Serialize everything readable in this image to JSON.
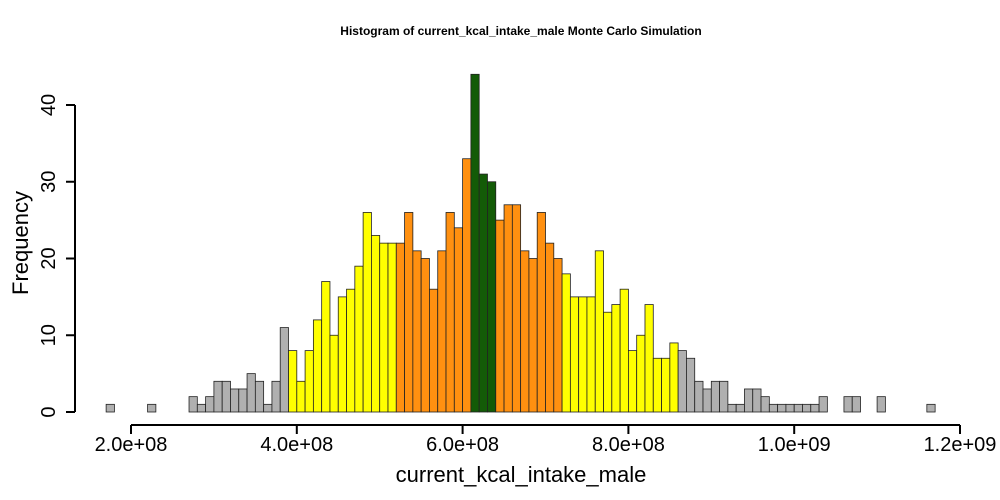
{
  "chart_data": {
    "type": "bar",
    "title": "Histogram of  current_kcal_intake_male  Monte Carlo Simulation",
    "xlabel": "current_kcal_intake_male",
    "ylabel": "Frequency",
    "xlim": [
      120000000,
      1200000000
    ],
    "ylim": [
      0,
      44
    ],
    "x_ticks": [
      200000000,
      400000000,
      600000000,
      800000000,
      1000000000,
      1200000000
    ],
    "x_tick_labels": [
      "2.0e+08",
      "4.0e+08",
      "6.0e+08",
      "8.0e+08",
      "1.0e+09",
      "1.2e+09"
    ],
    "y_ticks": [
      0,
      10,
      20,
      30,
      40
    ],
    "y_tick_labels": [
      "0",
      "10",
      "20",
      "30",
      "40"
    ],
    "bin_start": 170000000,
    "bin_width": 10000000,
    "colors": {
      "gray": "#b0b0b0",
      "yellow": "#ffff00",
      "orange": "#ff9010",
      "green": "#135b07"
    },
    "bins": [
      {
        "count": 1,
        "color": "gray"
      },
      {
        "count": 0,
        "color": "gray"
      },
      {
        "count": 0,
        "color": "gray"
      },
      {
        "count": 0,
        "color": "gray"
      },
      {
        "count": 0,
        "color": "gray"
      },
      {
        "count": 1,
        "color": "gray"
      },
      {
        "count": 0,
        "color": "gray"
      },
      {
        "count": 0,
        "color": "gray"
      },
      {
        "count": 0,
        "color": "gray"
      },
      {
        "count": 0,
        "color": "gray"
      },
      {
        "count": 2,
        "color": "gray"
      },
      {
        "count": 1,
        "color": "gray"
      },
      {
        "count": 2,
        "color": "gray"
      },
      {
        "count": 4,
        "color": "gray"
      },
      {
        "count": 4,
        "color": "gray"
      },
      {
        "count": 3,
        "color": "gray"
      },
      {
        "count": 3,
        "color": "gray"
      },
      {
        "count": 5,
        "color": "gray"
      },
      {
        "count": 4,
        "color": "gray"
      },
      {
        "count": 1,
        "color": "gray"
      },
      {
        "count": 4,
        "color": "gray"
      },
      {
        "count": 11,
        "color": "gray"
      },
      {
        "count": 8,
        "color": "yellow"
      },
      {
        "count": 4,
        "color": "yellow"
      },
      {
        "count": 8,
        "color": "yellow"
      },
      {
        "count": 12,
        "color": "yellow"
      },
      {
        "count": 17,
        "color": "yellow"
      },
      {
        "count": 10,
        "color": "yellow"
      },
      {
        "count": 15,
        "color": "yellow"
      },
      {
        "count": 16,
        "color": "yellow"
      },
      {
        "count": 19,
        "color": "yellow"
      },
      {
        "count": 26,
        "color": "yellow"
      },
      {
        "count": 23,
        "color": "yellow"
      },
      {
        "count": 22,
        "color": "yellow"
      },
      {
        "count": 22,
        "color": "yellow"
      },
      {
        "count": 22,
        "color": "orange"
      },
      {
        "count": 26,
        "color": "orange"
      },
      {
        "count": 21,
        "color": "orange"
      },
      {
        "count": 20,
        "color": "orange"
      },
      {
        "count": 16,
        "color": "orange"
      },
      {
        "count": 21,
        "color": "orange"
      },
      {
        "count": 26,
        "color": "orange"
      },
      {
        "count": 24,
        "color": "orange"
      },
      {
        "count": 33,
        "color": "orange"
      },
      {
        "count": 44,
        "color": "green"
      },
      {
        "count": 31,
        "color": "green"
      },
      {
        "count": 30,
        "color": "green"
      },
      {
        "count": 25,
        "color": "orange"
      },
      {
        "count": 27,
        "color": "orange"
      },
      {
        "count": 27,
        "color": "orange"
      },
      {
        "count": 21,
        "color": "orange"
      },
      {
        "count": 20,
        "color": "orange"
      },
      {
        "count": 26,
        "color": "orange"
      },
      {
        "count": 22,
        "color": "orange"
      },
      {
        "count": 20,
        "color": "orange"
      },
      {
        "count": 18,
        "color": "yellow"
      },
      {
        "count": 15,
        "color": "yellow"
      },
      {
        "count": 15,
        "color": "yellow"
      },
      {
        "count": 15,
        "color": "yellow"
      },
      {
        "count": 21,
        "color": "yellow"
      },
      {
        "count": 13,
        "color": "yellow"
      },
      {
        "count": 14,
        "color": "yellow"
      },
      {
        "count": 16,
        "color": "yellow"
      },
      {
        "count": 8,
        "color": "yellow"
      },
      {
        "count": 10,
        "color": "yellow"
      },
      {
        "count": 14,
        "color": "yellow"
      },
      {
        "count": 7,
        "color": "yellow"
      },
      {
        "count": 7,
        "color": "yellow"
      },
      {
        "count": 9,
        "color": "yellow"
      },
      {
        "count": 8,
        "color": "gray"
      },
      {
        "count": 7,
        "color": "gray"
      },
      {
        "count": 4,
        "color": "gray"
      },
      {
        "count": 3,
        "color": "gray"
      },
      {
        "count": 4,
        "color": "gray"
      },
      {
        "count": 4,
        "color": "gray"
      },
      {
        "count": 1,
        "color": "gray"
      },
      {
        "count": 1,
        "color": "gray"
      },
      {
        "count": 3,
        "color": "gray"
      },
      {
        "count": 3,
        "color": "gray"
      },
      {
        "count": 2,
        "color": "gray"
      },
      {
        "count": 1,
        "color": "gray"
      },
      {
        "count": 1,
        "color": "gray"
      },
      {
        "count": 1,
        "color": "gray"
      },
      {
        "count": 1,
        "color": "gray"
      },
      {
        "count": 1,
        "color": "gray"
      },
      {
        "count": 1,
        "color": "gray"
      },
      {
        "count": 2,
        "color": "gray"
      },
      {
        "count": 0,
        "color": "gray"
      },
      {
        "count": 0,
        "color": "gray"
      },
      {
        "count": 2,
        "color": "gray"
      },
      {
        "count": 2,
        "color": "gray"
      },
      {
        "count": 0,
        "color": "gray"
      },
      {
        "count": 0,
        "color": "gray"
      },
      {
        "count": 2,
        "color": "gray"
      },
      {
        "count": 0,
        "color": "gray"
      },
      {
        "count": 0,
        "color": "gray"
      },
      {
        "count": 0,
        "color": "gray"
      },
      {
        "count": 0,
        "color": "gray"
      },
      {
        "count": 0,
        "color": "gray"
      },
      {
        "count": 1,
        "color": "gray"
      }
    ]
  }
}
